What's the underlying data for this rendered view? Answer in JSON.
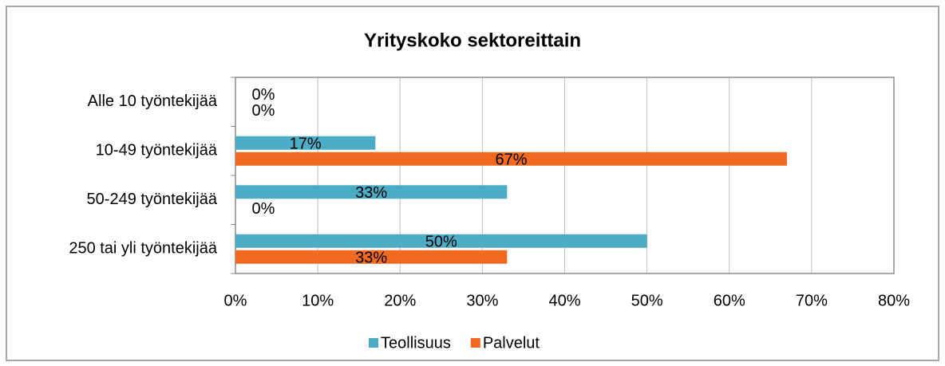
{
  "chart_data": {
    "type": "hbar",
    "title": "Yrityskoko sektoreittain",
    "categories": [
      "Alle 10 työntekijää",
      "10-49 työntekijää",
      "50-249 työntekijää",
      "250 tai yli työntekijää"
    ],
    "series": [
      {
        "name": "Teollisuus",
        "color": "#4bacc6",
        "values": [
          0,
          17,
          33,
          50
        ],
        "value_labels": [
          "0%",
          "17%",
          "33%",
          "50%"
        ]
      },
      {
        "name": "Palvelut",
        "color": "#f26a22",
        "values": [
          0,
          67,
          0,
          33
        ],
        "value_labels": [
          "0%",
          "67%",
          "0%",
          "33%"
        ]
      }
    ],
    "xlim": [
      0,
      80
    ],
    "xticks": [
      {
        "value": 0,
        "label": "0%"
      },
      {
        "value": 10,
        "label": "10%"
      },
      {
        "value": 20,
        "label": "20%"
      },
      {
        "value": 30,
        "label": "30%"
      },
      {
        "value": 40,
        "label": "40%"
      },
      {
        "value": 50,
        "label": "50%"
      },
      {
        "value": 60,
        "label": "60%"
      },
      {
        "value": 70,
        "label": "70%"
      },
      {
        "value": 80,
        "label": "80%"
      }
    ],
    "grid": true,
    "legend": "bottom"
  }
}
